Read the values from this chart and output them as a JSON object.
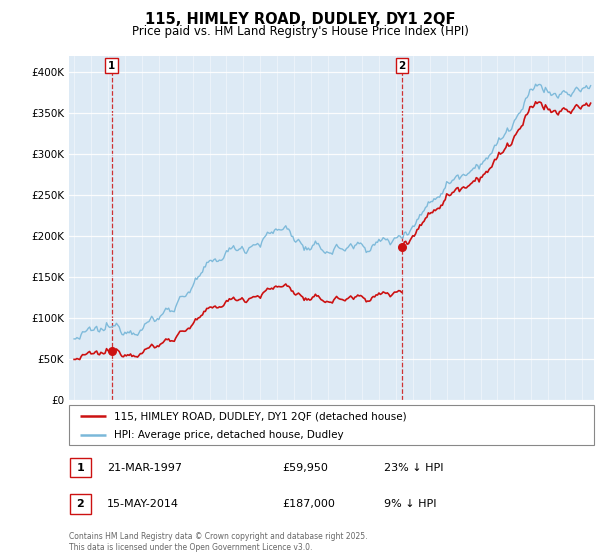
{
  "title": "115, HIMLEY ROAD, DUDLEY, DY1 2QF",
  "subtitle": "Price paid vs. HM Land Registry's House Price Index (HPI)",
  "purchase1_date": "21-MAR-1997",
  "purchase1_price": 59950,
  "purchase2_date": "15-MAY-2014",
  "purchase2_price": 187000,
  "purchase1_hpi_diff": "23% ↓ HPI",
  "purchase2_hpi_diff": "9% ↓ HPI",
  "legend_line1": "115, HIMLEY ROAD, DUDLEY, DY1 2QF (detached house)",
  "legend_line2": "HPI: Average price, detached house, Dudley",
  "footer": "Contains HM Land Registry data © Crown copyright and database right 2025.\nThis data is licensed under the Open Government Licence v3.0.",
  "hpi_color": "#7ab8d9",
  "price_color": "#cc1111",
  "vline_color": "#cc1111",
  "background_color": "#ddeaf5",
  "ylim": [
    0,
    420000
  ],
  "yticks": [
    0,
    50000,
    100000,
    150000,
    200000,
    250000,
    300000,
    350000,
    400000
  ],
  "purchase1_year": 1997.22,
  "purchase2_year": 2014.37
}
